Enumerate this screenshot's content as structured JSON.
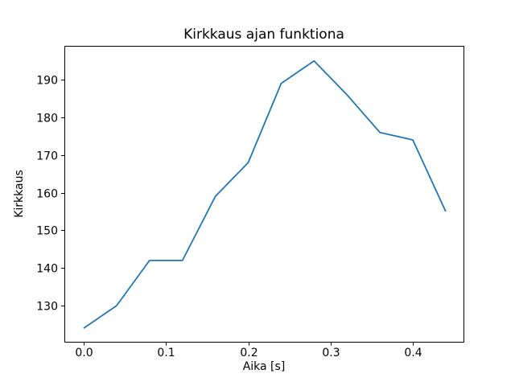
{
  "chart_data": {
    "type": "line",
    "title": "Kirkkaus ajan funktiona",
    "xlabel": "Aika [s]",
    "ylabel": "Kirkkaus",
    "x": [
      0.0,
      0.04,
      0.08,
      0.12,
      0.16,
      0.2,
      0.24,
      0.28,
      0.32,
      0.36,
      0.4,
      0.44
    ],
    "y": [
      124,
      130,
      142,
      142,
      159,
      168,
      189,
      195,
      186,
      176,
      174,
      155
    ],
    "x_ticks": [
      0.0,
      0.1,
      0.2,
      0.3,
      0.4
    ],
    "x_tick_labels": [
      "0.0",
      "0.1",
      "0.2",
      "0.3",
      "0.4"
    ],
    "y_ticks": [
      130,
      140,
      150,
      160,
      170,
      180,
      190
    ],
    "y_tick_labels": [
      "130",
      "140",
      "150",
      "160",
      "170",
      "180",
      "190"
    ],
    "xlim": [
      -0.0235,
      0.4616
    ],
    "ylim": [
      120.4,
      199.0
    ],
    "grid": false,
    "legend": null,
    "line_color": "#1f77b4",
    "axis_color": "#000000",
    "background": "#ffffff"
  }
}
